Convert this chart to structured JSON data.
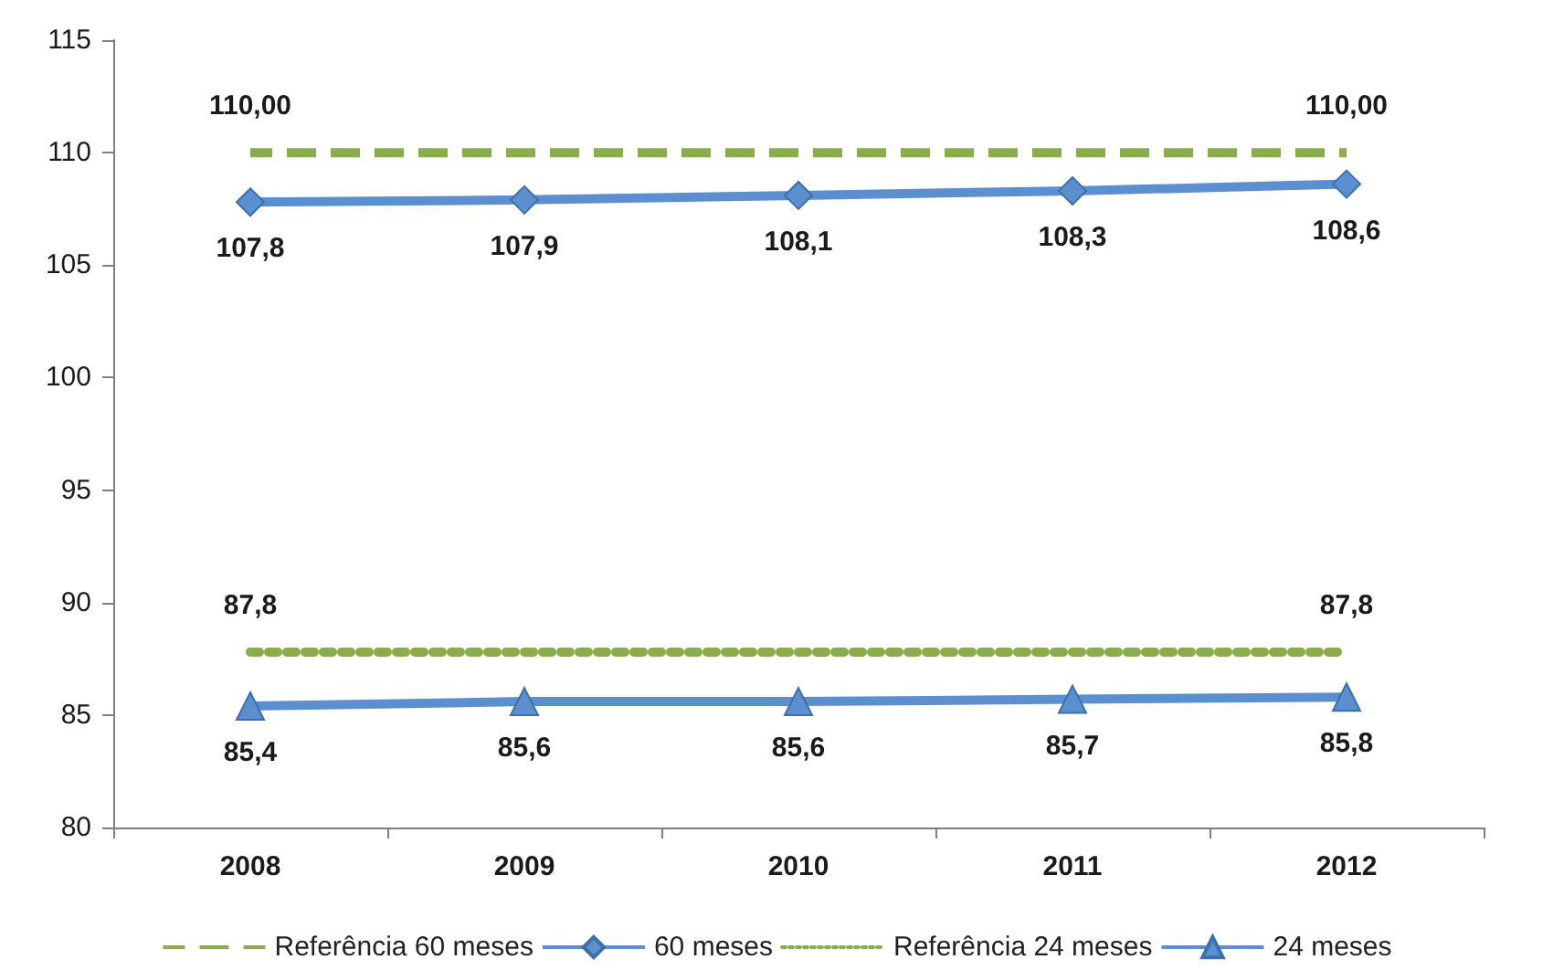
{
  "chart_data": {
    "type": "line",
    "categories": [
      "2008",
      "2009",
      "2010",
      "2011",
      "2012"
    ],
    "series": [
      {
        "name": "Referência 60 meses",
        "color": "#8aac4c",
        "line_style": "dashed",
        "marker": "none",
        "values": [
          110,
          110,
          110,
          110,
          110
        ],
        "value_labels": [
          "110,00",
          null,
          null,
          null,
          "110,00"
        ]
      },
      {
        "name": "60 meses",
        "color": "#5b8fcf",
        "line_style": "solid",
        "marker": "diamond",
        "values": [
          107.8,
          107.9,
          108.1,
          108.3,
          108.6
        ],
        "value_labels": [
          "107,8",
          "107,9",
          "108,1",
          "108,3",
          "108,6"
        ]
      },
      {
        "name": "Referência 24 meses",
        "color": "#8aac4c",
        "line_style": "dotted",
        "marker": "none",
        "values": [
          87.8,
          87.8,
          87.8,
          87.8,
          87.8
        ],
        "value_labels": [
          "87,8",
          null,
          null,
          null,
          "87,8"
        ]
      },
      {
        "name": "24 meses",
        "color": "#5b8fcf",
        "line_style": "solid",
        "marker": "triangle",
        "values": [
          85.4,
          85.6,
          85.6,
          85.7,
          85.8
        ],
        "value_labels": [
          "85,4",
          "85,6",
          "85,6",
          "85,7",
          "85,8"
        ]
      }
    ],
    "ylim": [
      80,
      115
    ],
    "yticks": [
      80,
      85,
      90,
      95,
      100,
      105,
      110,
      115
    ],
    "grid": false,
    "legend": "bottom"
  }
}
